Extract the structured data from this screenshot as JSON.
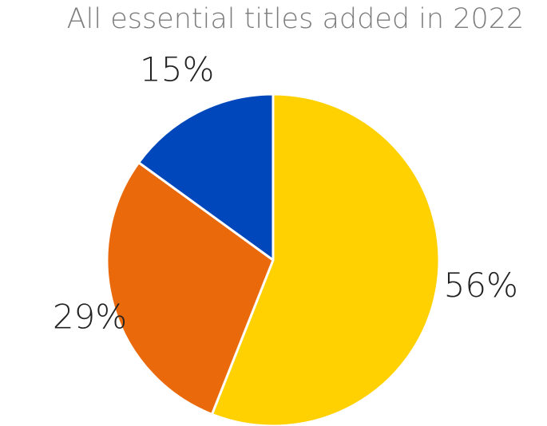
{
  "chart_data": {
    "type": "pie",
    "title": "All essential titles added in 2022",
    "categories": [
      "",
      "",
      ""
    ],
    "values": [
      56,
      29,
      15
    ],
    "labels": [
      "56%",
      "29%",
      "15%"
    ],
    "colors": [
      "#FFD100",
      "#EA690B",
      "#0047BB"
    ],
    "start_angle_deg": 0,
    "direction": "clockwise",
    "legend": "none"
  }
}
